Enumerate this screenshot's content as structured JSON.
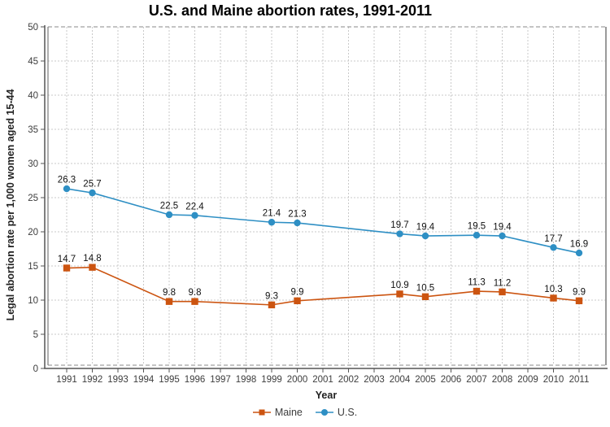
{
  "chart_data": {
    "type": "line",
    "title": "U.S. and Maine abortion rates, 1991-2011",
    "xlabel": "Year",
    "ylabel": "Legal abortion rate per 1,000 women aged 15-44",
    "x_categories": [
      "1991",
      "1992",
      "1993",
      "1994",
      "1995",
      "1996",
      "1997",
      "1998",
      "1999",
      "2000",
      "2001",
      "2002",
      "2003",
      "2004",
      "2005",
      "2006",
      "2007",
      "2008",
      "2009",
      "2010",
      "2011"
    ],
    "ylim": [
      0,
      50
    ],
    "y_tick_step": 5,
    "grid": "dashed-both-axes",
    "legend_position": "bottom-center",
    "series": [
      {
        "name": "Maine",
        "color": "#cc5410",
        "marker": "square",
        "points": [
          [
            1991,
            14.7
          ],
          [
            1992,
            14.8
          ],
          [
            1995,
            9.8
          ],
          [
            1996,
            9.8
          ],
          [
            1999,
            9.3
          ],
          [
            2000,
            9.9
          ],
          [
            2004,
            10.9
          ],
          [
            2005,
            10.5
          ],
          [
            2007,
            11.3
          ],
          [
            2008,
            11.2
          ],
          [
            2010,
            10.3
          ],
          [
            2011,
            9.9
          ]
        ]
      },
      {
        "name": "U.S.",
        "color": "#2e8fc4",
        "marker": "circle",
        "points": [
          [
            1991,
            26.3
          ],
          [
            1992,
            25.7
          ],
          [
            1995,
            22.5
          ],
          [
            1996,
            22.4
          ],
          [
            1999,
            21.4
          ],
          [
            2000,
            21.3
          ],
          [
            2004,
            19.7
          ],
          [
            2005,
            19.4
          ],
          [
            2007,
            19.5
          ],
          [
            2008,
            19.4
          ],
          [
            2010,
            17.7
          ],
          [
            2011,
            16.9
          ]
        ]
      }
    ]
  }
}
